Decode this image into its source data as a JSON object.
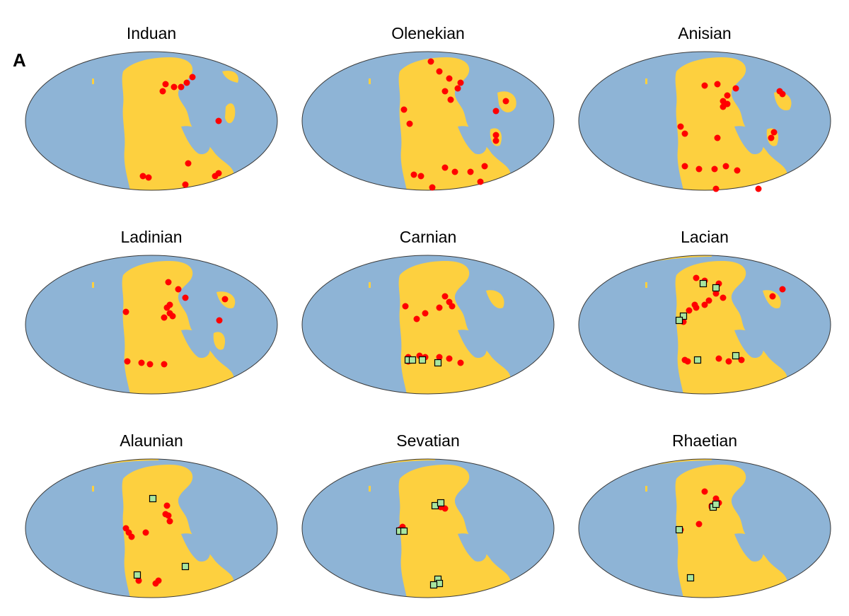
{
  "figure": {
    "panel_label": "A",
    "colors": {
      "ocean": "#8eb4d6",
      "land": "#fdd03f",
      "outline": "#3a3a3a",
      "red_point": "#ff0000",
      "green_square": "#a8e6a0",
      "square_edge": "#000000"
    },
    "maps": [
      {
        "title": "Induan"
      },
      {
        "title": "Olenekian"
      },
      {
        "title": "Anisian"
      },
      {
        "title": "Ladinian"
      },
      {
        "title": "Carnian"
      },
      {
        "title": "Lacian"
      },
      {
        "title": "Alaunian"
      },
      {
        "title": "Sevatian"
      },
      {
        "title": "Rhaetian"
      }
    ]
  }
}
